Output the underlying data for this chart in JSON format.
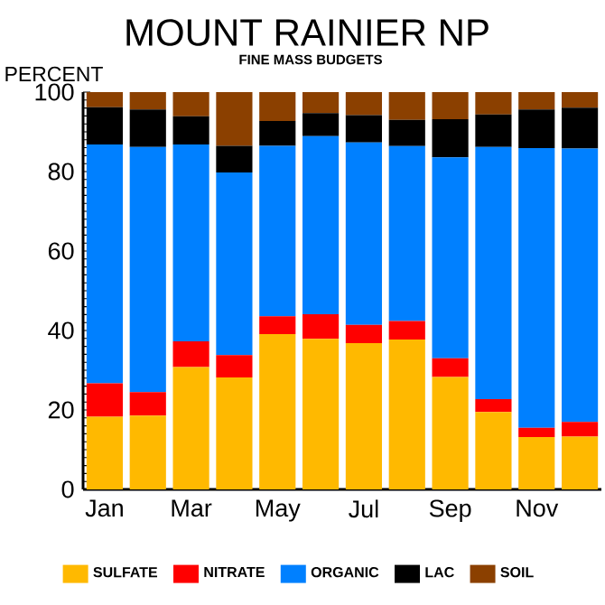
{
  "chart_data": {
    "type": "bar",
    "stacked": true,
    "title": "MOUNT RAINIER NP",
    "subtitle": "FINE MASS BUDGETS",
    "ylabel": "PERCENT",
    "categories": [
      "Jan",
      null,
      "Mar",
      null,
      "May",
      null,
      "Jul",
      null,
      "Sep",
      null,
      "Nov",
      null
    ],
    "ylim": [
      0,
      100
    ],
    "yticks": [
      0,
      20,
      40,
      60,
      80,
      100
    ],
    "legend": "bottom",
    "series": [
      {
        "name": "SULFATE",
        "color": "#ffb900",
        "values": [
          18.3,
          18.6,
          30.8,
          28.2,
          39.1,
          37.9,
          36.8,
          37.7,
          28.3,
          19.5,
          13.2,
          13.3
        ]
      },
      {
        "name": "NITRATE",
        "color": "#ff0000",
        "values": [
          8.4,
          5.9,
          6.5,
          5.6,
          4.5,
          6.2,
          4.6,
          4.7,
          4.7,
          3.2,
          2.3,
          3.7
        ]
      },
      {
        "name": "ORGANIC",
        "color": "#0080ff",
        "values": [
          60.1,
          61.7,
          49.5,
          46.0,
          42.9,
          44.8,
          45.9,
          44.0,
          50.6,
          63.5,
          70.4,
          68.8
        ]
      },
      {
        "name": "LAC",
        "color": "#000000",
        "values": [
          9.4,
          9.4,
          7.1,
          6.7,
          6.2,
          5.8,
          6.9,
          6.6,
          9.6,
          8.2,
          9.7,
          10.3
        ]
      },
      {
        "name": "SOIL",
        "color": "#8b4000",
        "values": [
          3.8,
          4.4,
          6.1,
          13.5,
          7.3,
          5.3,
          5.8,
          7.0,
          6.8,
          5.6,
          4.4,
          3.9
        ]
      }
    ]
  }
}
